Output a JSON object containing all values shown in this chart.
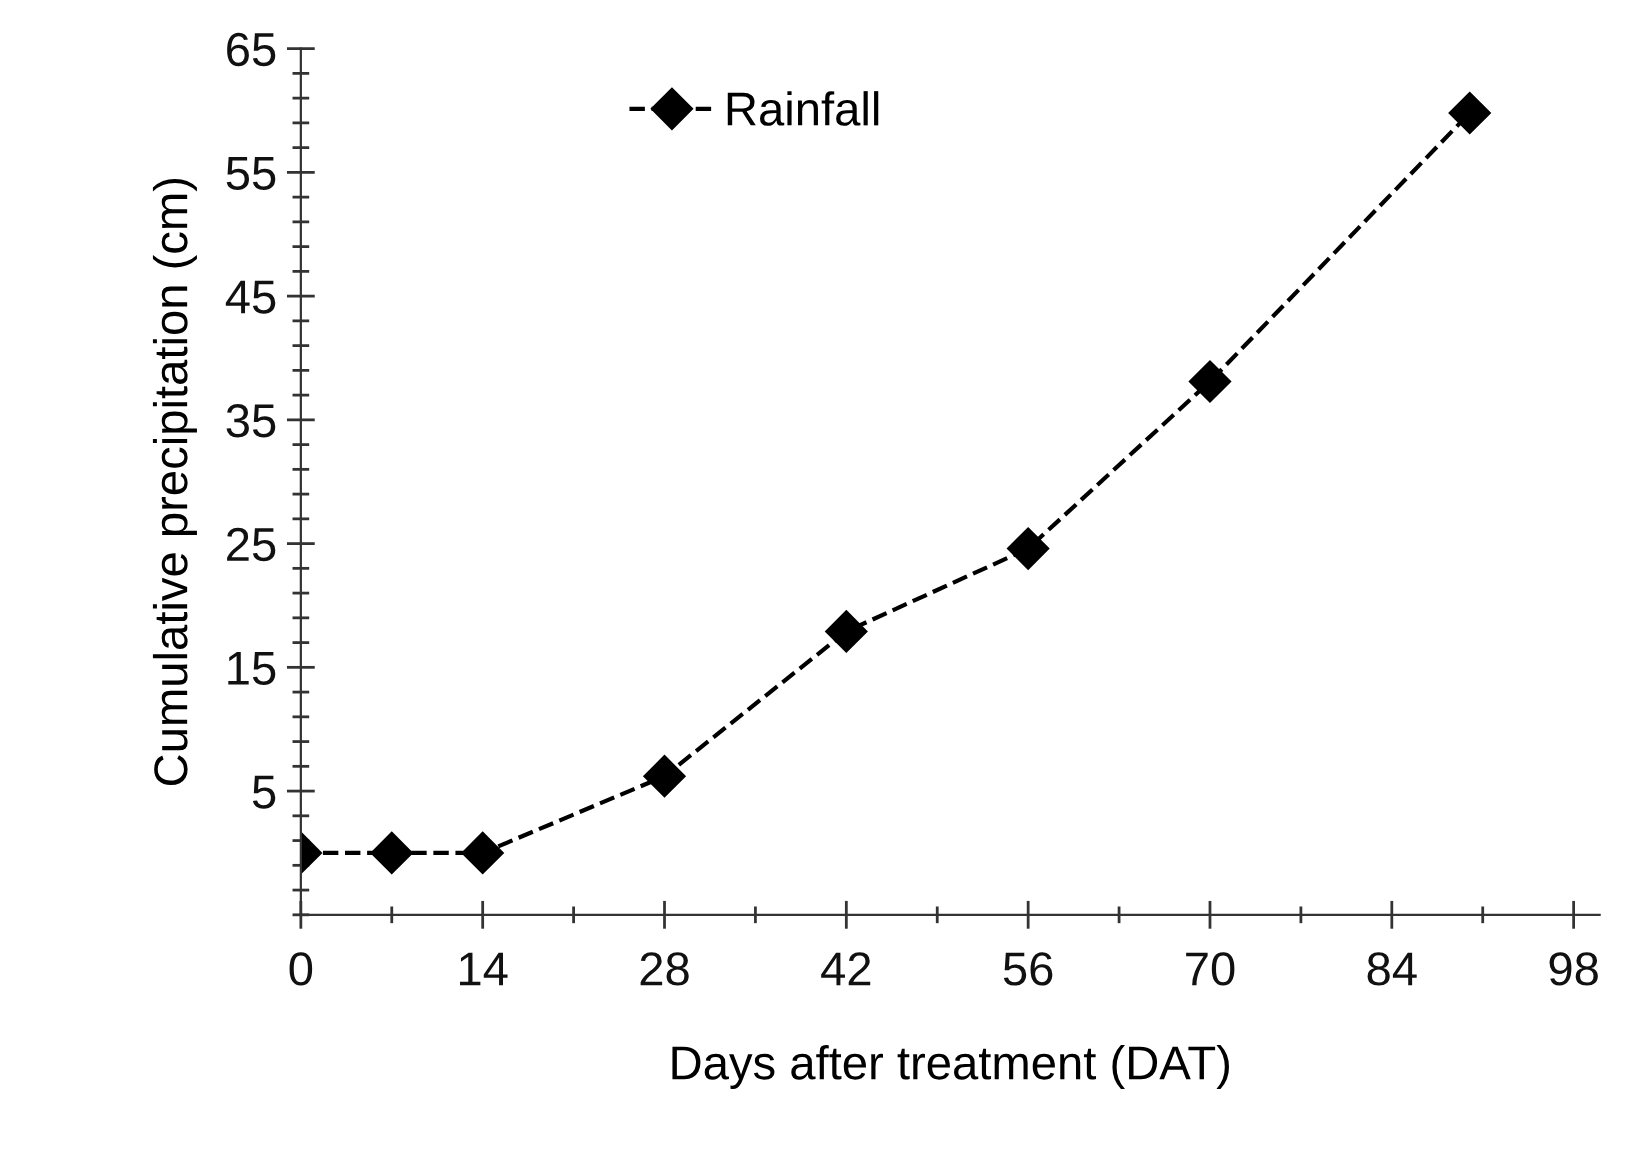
{
  "chart_data": {
    "type": "line",
    "xlabel": "Days after treatment (DAT)",
    "ylabel": "Cumulative precipitation (cm)",
    "x": [
      0,
      7,
      14,
      28,
      42,
      56,
      70,
      90
    ],
    "series": [
      {
        "name": "Rainfall",
        "color": "#000000",
        "values": [
          0,
          0,
          0,
          6.2,
          17.9,
          24.6,
          38.1,
          59.8
        ]
      }
    ],
    "xlim": [
      0,
      100
    ],
    "ylim": [
      -5,
      65
    ],
    "xticks": [
      0,
      {
        "value": 7,
        "label": null
      },
      14,
      {
        "value": 21,
        "label": null
      },
      28,
      {
        "value": 35,
        "label": null
      },
      42,
      {
        "value": 49,
        "label": null
      },
      56,
      {
        "value": 63,
        "label": null
      },
      70,
      {
        "value": 77,
        "label": null
      },
      84,
      {
        "value": 91,
        "label": null
      },
      98
    ],
    "yticks": [
      {
        "value": -5,
        "label": null
      },
      {
        "value": -3,
        "label": null
      },
      {
        "value": -1,
        "label": null
      },
      {
        "value": 1,
        "label": null
      },
      {
        "value": 3,
        "label": null
      },
      5,
      {
        "value": 7,
        "label": null
      },
      {
        "value": 9,
        "label": null
      },
      {
        "value": 11,
        "label": null
      },
      {
        "value": 13,
        "label": null
      },
      15,
      {
        "value": 17,
        "label": null
      },
      {
        "value": 19,
        "label": null
      },
      {
        "value": 21,
        "label": null
      },
      {
        "value": 23,
        "label": null
      },
      25,
      {
        "value": 27,
        "label": null
      },
      {
        "value": 29,
        "label": null
      },
      {
        "value": 31,
        "label": null
      },
      {
        "value": 33,
        "label": null
      },
      35,
      {
        "value": 37,
        "label": null
      },
      {
        "value": 39,
        "label": null
      },
      {
        "value": 41,
        "label": null
      },
      {
        "value": 43,
        "label": null
      },
      45,
      {
        "value": 47,
        "label": null
      },
      {
        "value": 49,
        "label": null
      },
      {
        "value": 51,
        "label": null
      },
      {
        "value": 53,
        "label": null
      },
      55,
      {
        "value": 57,
        "label": null
      },
      {
        "value": 59,
        "label": null
      },
      {
        "value": 61,
        "label": null
      },
      {
        "value": 63,
        "label": null
      },
      65
    ],
    "marker": "diamond",
    "line_style": "dashed",
    "legend": "top",
    "grid": false
  }
}
